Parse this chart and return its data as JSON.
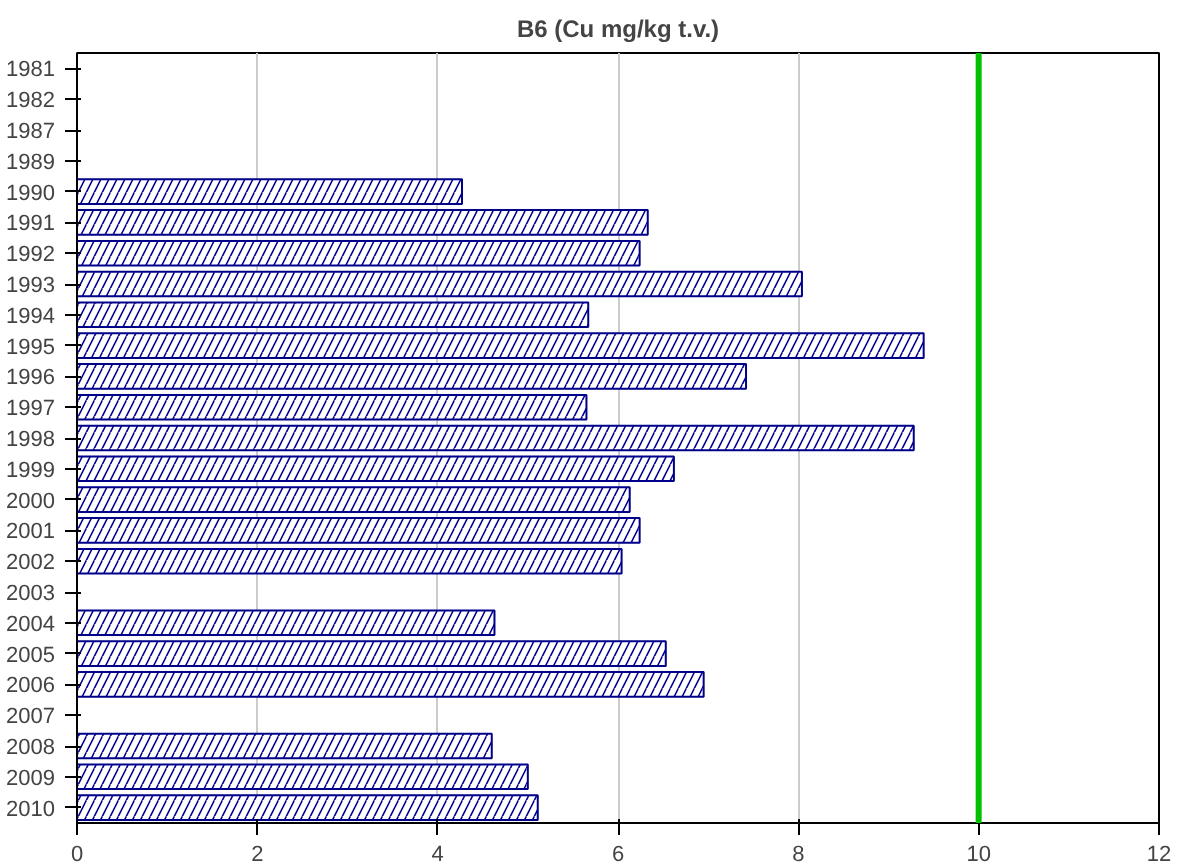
{
  "chart_data": {
    "type": "bar",
    "orientation": "horizontal",
    "title": "B6 (Cu mg/kg t.v.)",
    "categories": [
      "1981",
      "1982",
      "1987",
      "1989",
      "1990",
      "1991",
      "1992",
      "1993",
      "1994",
      "1995",
      "1996",
      "1997",
      "1998",
      "1999",
      "2000",
      "2001",
      "2002",
      "2003",
      "2004",
      "2005",
      "2006",
      "2007",
      "2008",
      "2009",
      "2010"
    ],
    "values": [
      null,
      null,
      null,
      null,
      4.27,
      6.33,
      6.24,
      8.04,
      5.67,
      9.39,
      7.42,
      5.65,
      9.28,
      6.62,
      6.13,
      6.24,
      6.04,
      null,
      4.63,
      6.53,
      6.95,
      null,
      4.6,
      5.0,
      5.11
    ],
    "color": "#00008b",
    "xlim": [
      0,
      12
    ],
    "xticks": [
      0,
      2,
      4,
      6,
      8,
      10,
      12
    ],
    "grid": "x",
    "ref_lines": [
      {
        "axis": "x",
        "value": 10,
        "color": "#00c000"
      }
    ]
  }
}
